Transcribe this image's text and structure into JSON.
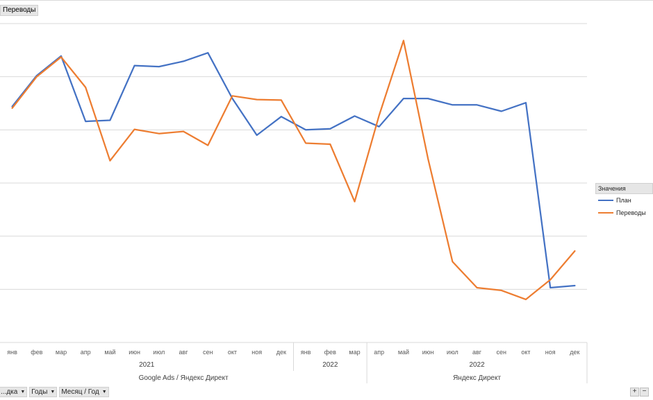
{
  "filter_button": "Переводы",
  "legend": {
    "title": "Значения",
    "items": [
      {
        "label": "План",
        "color": "#4472c4"
      },
      {
        "label": "Переводы",
        "color": "#ed7d31"
      }
    ]
  },
  "axis_buttons": [
    "...дка",
    "Годы",
    "Месяц / Год"
  ],
  "zoom": {
    "plus": "+",
    "minus": "−"
  },
  "chart_data": {
    "type": "line",
    "x": [
      "янв",
      "фев",
      "мар",
      "апр",
      "май",
      "июн",
      "июл",
      "авг",
      "сен",
      "окт",
      "ноя",
      "дек",
      "янв",
      "фев",
      "мар",
      "апр",
      "май",
      "июн",
      "июл",
      "авг",
      "сен",
      "окт",
      "ноя",
      "дек"
    ],
    "groups": [
      {
        "year": "2021",
        "segment": "Google Ads / Яндекс Директ",
        "start": 0,
        "end": 11
      },
      {
        "year": "2022",
        "segment": "Google Ads / Яндекс Директ",
        "start": 12,
        "end": 14
      },
      {
        "year": "2022",
        "segment": "Яндекс Директ",
        "start": 15,
        "end": 23
      }
    ],
    "segments": [
      {
        "label": "Google Ads / Яндекс Директ",
        "start": 0,
        "end": 14
      },
      {
        "label": "Яндекс Директ",
        "start": 15,
        "end": 23
      }
    ],
    "ylim": [
      0,
      6
    ],
    "gridlines": 6,
    "series": [
      {
        "name": "План",
        "color": "#4472c4",
        "values": [
          4.44,
          5.02,
          5.39,
          4.16,
          4.18,
          5.21,
          5.19,
          5.29,
          5.45,
          4.59,
          3.9,
          4.25,
          4.0,
          4.02,
          4.26,
          4.06,
          4.59,
          4.59,
          4.47,
          4.47,
          4.35,
          4.51,
          1.03,
          1.07
        ]
      },
      {
        "name": "Переводы",
        "color": "#ed7d31",
        "values": [
          4.41,
          5.0,
          5.37,
          4.8,
          3.42,
          4.01,
          3.93,
          3.97,
          3.71,
          4.64,
          4.57,
          4.56,
          3.75,
          3.73,
          2.65,
          4.27,
          5.68,
          3.46,
          1.52,
          1.03,
          0.98,
          0.81,
          1.18,
          1.72
        ]
      }
    ]
  }
}
